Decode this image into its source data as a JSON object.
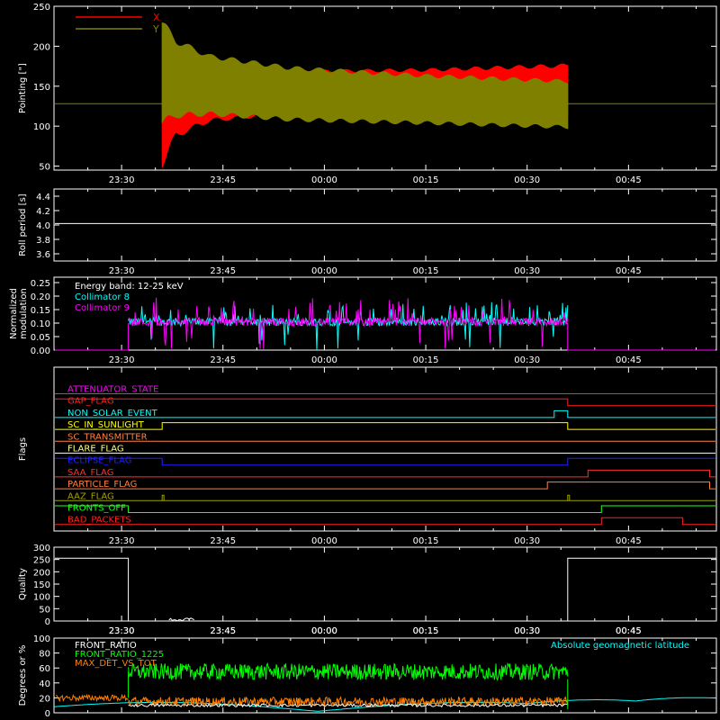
{
  "x_axis": {
    "range": [
      "23:20",
      "00:58"
    ],
    "ticks": [
      "23:30",
      "23:45",
      "00:00",
      "00:15",
      "00:30",
      "00:45"
    ]
  },
  "chart_data": [
    {
      "type": "line",
      "ylabel": "Pointing [\"]",
      "ylim": [
        45,
        250
      ],
      "yticks": [
        50,
        100,
        150,
        200,
        250
      ],
      "series": [
        {
          "name": "X",
          "color": "#ff0000"
        },
        {
          "name": "Y",
          "color": "#808000"
        }
      ],
      "baseline": 128,
      "data_start": "23:36",
      "data_end": "00:36",
      "x_envelope": {
        "times": [
          "23:36",
          "23:38",
          "23:43",
          "23:55",
          "00:15",
          "00:36"
        ],
        "upper": [
          230,
          190,
          175,
          170,
          172,
          178
        ],
        "lower": [
          48,
          85,
          105,
          115,
          117,
          113
        ]
      },
      "y_envelope": {
        "times": [
          "23:36",
          "23:38",
          "23:43",
          "23:55",
          "00:15",
          "00:36"
        ],
        "upper": [
          235,
          210,
          190,
          175,
          165,
          158
        ],
        "lower": [
          100,
          110,
          113,
          106,
          102,
          97
        ]
      }
    },
    {
      "type": "line",
      "ylabel": "Roll period [s]",
      "ylim": [
        3.5,
        4.5
      ],
      "yticks": [
        3.6,
        3.8,
        4.0,
        4.2,
        4.4
      ],
      "ytick_labels": [
        "3.6",
        "3.8",
        "4.0",
        "4.2",
        "4.4"
      ],
      "value": 4.02
    },
    {
      "type": "line",
      "ylabel": "Normalized modulation",
      "ylim": [
        0,
        0.27
      ],
      "yticks": [
        0.0,
        0.05,
        0.1,
        0.15,
        0.2,
        0.25
      ],
      "ytick_labels": [
        "0.00",
        "0.05",
        "0.10",
        "0.15",
        "0.20",
        "0.25"
      ],
      "energy_band": "Energy band: 12-25 keV",
      "series": [
        {
          "name": "Collimator 8",
          "color": "#00ffff"
        },
        {
          "name": "Collimator 9",
          "color": "#ff00ff"
        }
      ],
      "data_start": "23:31",
      "data_end": "00:36",
      "mean_level": 0.1
    },
    {
      "type": "table",
      "ylabel": "Flags",
      "flags": [
        {
          "name": "ATTENUATOR_STATE",
          "color": "#ff00ff",
          "steps": [
            [
              "23:20",
              0
            ]
          ]
        },
        {
          "name": "GAP_FLAG",
          "color": "#ff2020",
          "steps": [
            [
              "23:20",
              1
            ],
            [
              "00:36",
              0
            ],
            [
              "00:58",
              0
            ]
          ]
        },
        {
          "name": "NON_SOLAR_EVENT",
          "color": "#00ffff",
          "steps": [
            [
              "23:20",
              0
            ],
            [
              "00:34",
              1
            ],
            [
              "00:36",
              0
            ]
          ]
        },
        {
          "name": "SC_IN_SUNLIGHT",
          "color": "#ffff00",
          "steps": [
            [
              "23:20",
              0
            ],
            [
              "23:36",
              1
            ],
            [
              "00:36",
              0
            ]
          ]
        },
        {
          "name": "SC_TRANSMITTER",
          "color": "#ff8040",
          "steps": [
            [
              "23:20",
              0
            ]
          ]
        },
        {
          "name": "FLARE_FLAG",
          "color": "#ffff80",
          "steps": [
            [
              "23:20",
              0
            ]
          ]
        },
        {
          "name": "ECLIPSE_FLAG",
          "color": "#2020ff",
          "steps": [
            [
              "23:20",
              1
            ],
            [
              "23:36",
              0
            ],
            [
              "00:36",
              1
            ]
          ]
        },
        {
          "name": "SAA_FLAG",
          "color": "#ff3030",
          "steps": [
            [
              "23:20",
              0
            ],
            [
              "00:39",
              1
            ],
            [
              "00:57",
              0
            ]
          ]
        },
        {
          "name": "PARTICLE_FLAG",
          "color": "#ff8040",
          "steps": [
            [
              "23:20",
              0
            ],
            [
              "00:33",
              1
            ],
            [
              "00:57",
              0
            ]
          ]
        },
        {
          "name": "AAZ_FLAG",
          "color": "#a0a000",
          "steps": [
            [
              "23:20",
              0
            ]
          ]
        },
        {
          "name": "FRONTS_OFF",
          "color": "#20ff20",
          "steps": [
            [
              "23:20",
              1
            ],
            [
              "23:31",
              0
            ],
            [
              "00:41",
              1
            ]
          ]
        },
        {
          "name": "BAD_PACKETS",
          "color": "#ff2020",
          "steps": [
            [
              "23:20",
              0
            ],
            [
              "00:41",
              1
            ],
            [
              "00:53",
              0
            ]
          ]
        }
      ]
    },
    {
      "type": "line",
      "ylabel": "Quality",
      "ylim": [
        0,
        300
      ],
      "yticks": [
        0,
        50,
        100,
        150,
        200,
        250,
        300
      ],
      "steps": [
        [
          "23:20",
          255
        ],
        [
          "23:31",
          0
        ],
        [
          "00:36",
          255
        ],
        [
          "00:58",
          255
        ]
      ]
    },
    {
      "type": "line",
      "ylabel": "Degrees or %",
      "ylim": [
        0,
        100
      ],
      "yticks": [
        0,
        20,
        40,
        60,
        80,
        100
      ],
      "series": [
        {
          "name": "FRONT_RATIO",
          "color": "#ffffff"
        },
        {
          "name": "FRONT_RATIO_1225",
          "color": "#00ff00"
        },
        {
          "name": "MAX_DET_VS_TOT",
          "color": "#ff8000"
        }
      ],
      "right_legend": {
        "name": "Absolute geomagnetic latitude",
        "color": "#00ffff"
      },
      "data_start": "23:31",
      "data_end": "00:36"
    }
  ]
}
